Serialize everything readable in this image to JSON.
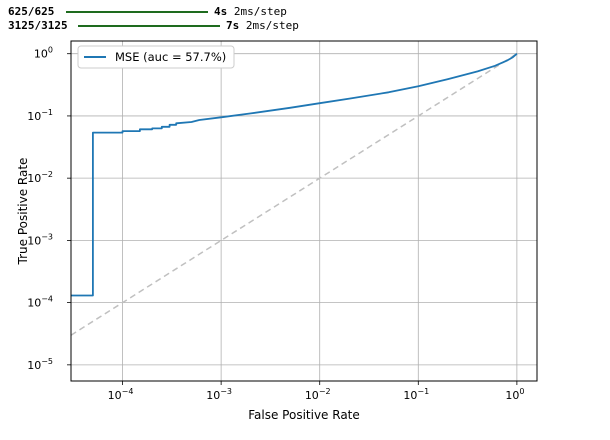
{
  "progress": [
    {
      "steps": "625/625",
      "time": "4s",
      "rate": "2ms/step"
    },
    {
      "steps": "3125/3125",
      "time": "7s",
      "rate": "2ms/step"
    }
  ],
  "chart_data": {
    "type": "line",
    "xscale": "log",
    "yscale": "log",
    "xlabel": "False Positive Rate",
    "ylabel": "True Positive Rate",
    "xlim": [
      3e-05,
      1.6
    ],
    "ylim": [
      5.5e-06,
      1.6
    ],
    "grid": true,
    "legend_position": "top-left",
    "xticks": [
      {
        "value": 0.0001,
        "base": "10",
        "exp": "−4"
      },
      {
        "value": 0.001,
        "base": "10",
        "exp": "−3"
      },
      {
        "value": 0.01,
        "base": "10",
        "exp": "−2"
      },
      {
        "value": 0.1,
        "base": "10",
        "exp": "−1"
      },
      {
        "value": 1,
        "base": "10",
        "exp": "0"
      }
    ],
    "yticks": [
      {
        "value": 1e-05,
        "base": "10",
        "exp": "−5"
      },
      {
        "value": 0.0001,
        "base": "10",
        "exp": "−4"
      },
      {
        "value": 0.001,
        "base": "10",
        "exp": "−3"
      },
      {
        "value": 0.01,
        "base": "10",
        "exp": "−2"
      },
      {
        "value": 0.1,
        "base": "10",
        "exp": "−1"
      },
      {
        "value": 1,
        "base": "10",
        "exp": "0"
      }
    ],
    "series": [
      {
        "name": "MSE (auc = 57.7%)",
        "color": "#1f77b4",
        "style": "solid",
        "points": [
          [
            3e-05,
            0.00013
          ],
          [
            5e-05,
            0.00013
          ],
          [
            5e-05,
            0.054
          ],
          [
            0.0001,
            0.054
          ],
          [
            0.0001,
            0.057
          ],
          [
            0.00015,
            0.057
          ],
          [
            0.00015,
            0.061
          ],
          [
            0.0002,
            0.061
          ],
          [
            0.0002,
            0.063
          ],
          [
            0.00025,
            0.063
          ],
          [
            0.00025,
            0.067
          ],
          [
            0.0003,
            0.067
          ],
          [
            0.0003,
            0.072
          ],
          [
            0.00035,
            0.072
          ],
          [
            0.00035,
            0.076
          ],
          [
            0.0005,
            0.08
          ],
          [
            0.0006,
            0.086
          ],
          [
            0.001,
            0.095
          ],
          [
            0.002,
            0.11
          ],
          [
            0.005,
            0.135
          ],
          [
            0.01,
            0.16
          ],
          [
            0.02,
            0.19
          ],
          [
            0.05,
            0.24
          ],
          [
            0.1,
            0.3
          ],
          [
            0.2,
            0.39
          ],
          [
            0.4,
            0.52
          ],
          [
            0.6,
            0.64
          ],
          [
            0.8,
            0.78
          ],
          [
            0.9,
            0.87
          ],
          [
            1.0,
            1.0
          ]
        ]
      },
      {
        "name": "",
        "color": "#c0c0c0",
        "style": "dashed",
        "points": [
          [
            3e-05,
            3e-05
          ],
          [
            1.0,
            1.0
          ]
        ]
      }
    ]
  }
}
